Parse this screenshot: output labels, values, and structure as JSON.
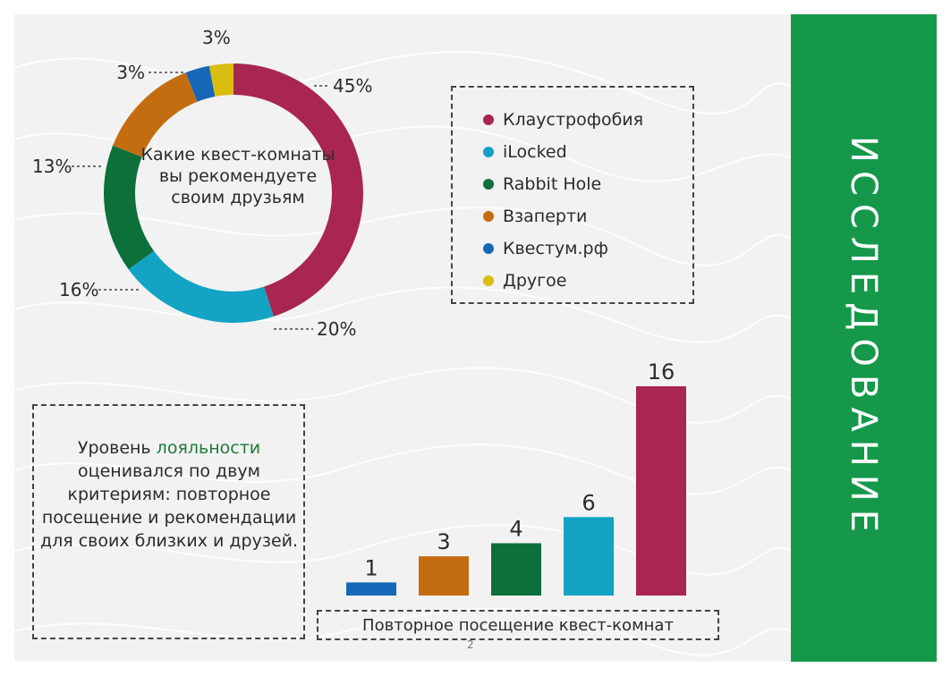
{
  "colors": {
    "crimson": "#a8264f",
    "cyan": "#13a3c4",
    "green": "#0d703a",
    "orange": "#c46d10",
    "blue": "#1667b8",
    "yellow": "#d9be10",
    "panel_green": "#15984a"
  },
  "side_title": "ИССЛЕДОВАНИЕ",
  "loyalty": {
    "before": "Уровень ",
    "highlight": "лояльности",
    "after": "оценивался по двум критериям: повторное посещение и рекомендации для своих близких и друзей."
  },
  "page_number": "2",
  "chart_data": [
    {
      "type": "pie",
      "title": "Какие квест-комнаты вы рекомендуете своим друзьям",
      "legend_position": "right",
      "series": [
        {
          "name": "Клаустрофобия",
          "value": 45,
          "label": "45%",
          "color": "#a8264f"
        },
        {
          "name": "iLocked",
          "value": 20,
          "label": "20%",
          "color": "#13a3c4"
        },
        {
          "name": "Rabbit Hole",
          "value": 16,
          "label": "16%",
          "color": "#0d703a"
        },
        {
          "name": "Взаперти",
          "value": 13,
          "label": "13%",
          "color": "#c46d10"
        },
        {
          "name": "Квестум.рф",
          "value": 3,
          "label": "3%",
          "color": "#1667b8"
        },
        {
          "name": "Другое",
          "value": 3,
          "label": "3%",
          "color": "#d9be10"
        }
      ]
    },
    {
      "type": "bar",
      "title": "Повторное посещение квест-комнат",
      "values": [
        1,
        3,
        4,
        6,
        16
      ],
      "colors": [
        "#1667b8",
        "#c46d10",
        "#0d703a",
        "#13a3c4",
        "#a8264f"
      ],
      "ylim": [
        0,
        16
      ]
    }
  ]
}
